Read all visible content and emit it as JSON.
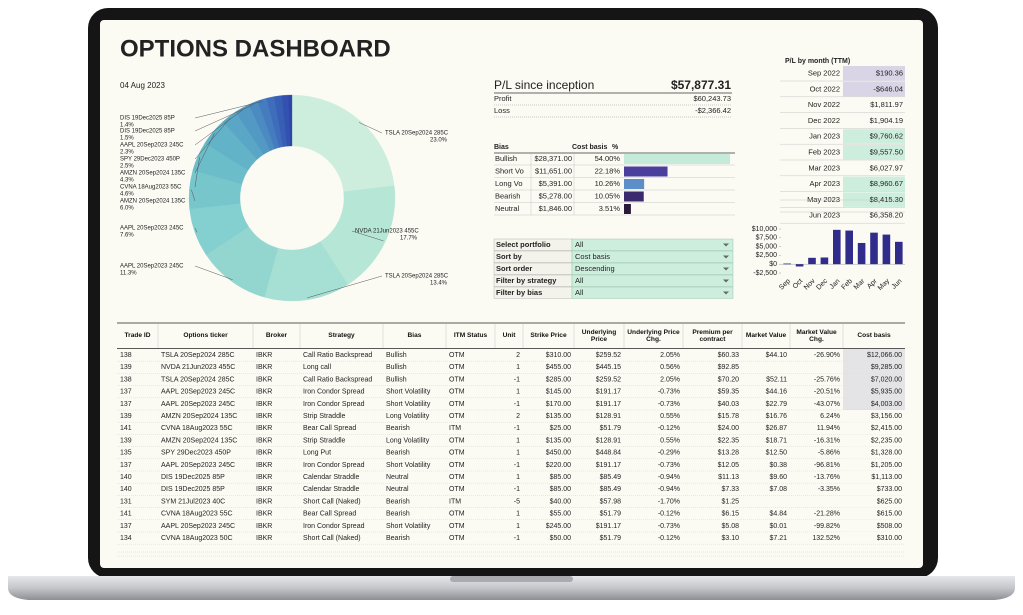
{
  "title": "OPTIONS DASHBOARD",
  "date": "04 Aug 2023",
  "pl_summary": {
    "label": "P/L since inception",
    "value": "$57,877.31",
    "rows": [
      [
        "Profit",
        "$60,243.73"
      ],
      [
        "Loss",
        "-$2,366.42"
      ]
    ]
  },
  "bias_table": {
    "columns": [
      "Bias",
      "Cost basis",
      "%"
    ],
    "rows": [
      [
        "Bullish",
        "$28,371.00"
      ],
      [
        "Short Vo",
        "$11,651.00"
      ],
      [
        "Long Vo",
        "$5,391.00"
      ],
      [
        "Bearish",
        "$5,278.00"
      ],
      [
        "Neutral",
        "$1,846.00"
      ]
    ]
  },
  "filters": [
    [
      "Select portfolio",
      "All"
    ],
    [
      "Sort by",
      "Cost basis"
    ],
    [
      "Sort order",
      "Descending"
    ],
    [
      "Filter by strategy",
      "All"
    ],
    [
      "Filter by bias",
      "All"
    ]
  ],
  "pl_by_month": {
    "title": "P/L by month (TTM)",
    "rows": [
      [
        "Sep 2022",
        "$190.36"
      ],
      [
        "Oct 2022",
        "-$646.04"
      ],
      [
        "Nov 2022",
        "$1,811.97"
      ],
      [
        "Dec 2022",
        "$1,904.19"
      ],
      [
        "Jan 2023",
        "$9,760.62"
      ],
      [
        "Feb 2023",
        "$9,557.50"
      ],
      [
        "Mar 2023",
        "$6,027.97"
      ],
      [
        "Apr 2023",
        "$8,960.67"
      ],
      [
        "May 2023",
        "$8,415.30"
      ],
      [
        "Jun 2023",
        "$6,358.20"
      ]
    ]
  },
  "positions": {
    "columns": [
      "Trade ID",
      "Options ticker",
      "Broker",
      "Strategy",
      "Bias",
      "ITM Status",
      "Unit",
      "Strike Price",
      "Underlying Price",
      "Underlying Price Chg.",
      "Premium per contract",
      "Market Value",
      "Market Value Chg.",
      "Cost basis"
    ],
    "rows": [
      [
        "138",
        "TSLA 20Sep2024 285C",
        "IBKR",
        "Call Ratio Backspread",
        "Bullish",
        "OTM",
        "2",
        "$310.00",
        "$259.52",
        "2.05%",
        "$60.33",
        "$44.10",
        "-26.90%",
        "$12,066.00"
      ],
      [
        "139",
        "NVDA 21Jun2023 455C",
        "IBKR",
        "Long call",
        "Bullish",
        "OTM",
        "1",
        "$455.00",
        "$445.15",
        "0.56%",
        "$92.85",
        null,
        null,
        "$9,285.00"
      ],
      [
        "138",
        "TSLA 20Sep2024 285C",
        "IBKR",
        "Call Ratio Backspread",
        "Bullish",
        "OTM",
        "-1",
        "$285.00",
        "$259.52",
        "2.05%",
        "$70.20",
        "$52.11",
        "-25.76%",
        "$7,020.00"
      ],
      [
        "137",
        "AAPL 20Sep2023 245C",
        "IBKR",
        "Iron Condor Spread",
        "Short Volatility",
        "OTM",
        "1",
        "$145.00",
        "$191.17",
        "-0.73%",
        "$59.35",
        "$44.16",
        "-20.51%",
        "$5,935.00"
      ],
      [
        "137",
        "AAPL 20Sep2023 245C",
        "IBKR",
        "Iron Condor Spread",
        "Short Volatility",
        "OTM",
        "-1",
        "$170.00",
        "$191.17",
        "-0.73%",
        "$40.03",
        "$22.79",
        "-43.07%",
        "$4,003.00"
      ],
      [
        "139",
        "AMZN 20Sep2024 135C",
        "IBKR",
        "Strip Straddle",
        "Long Volatility",
        "OTM",
        "2",
        "$135.00",
        "$128.91",
        "0.55%",
        "$15.78",
        "$16.76",
        "6.24%",
        "$3,156.00"
      ],
      [
        "141",
        "CVNA 18Aug2023 55C",
        "IBKR",
        "Bear Call Spread",
        "Bearish",
        "ITM",
        "-1",
        "$25.00",
        "$51.79",
        "-0.12%",
        "$24.00",
        "$26.87",
        "11.94%",
        "$2,415.00"
      ],
      [
        "139",
        "AMZN 20Sep2024 135C",
        "IBKR",
        "Strip Straddle",
        "Long Volatility",
        "OTM",
        "1",
        "$135.00",
        "$128.91",
        "0.55%",
        "$22.35",
        "$18.71",
        "-16.31%",
        "$2,235.00"
      ],
      [
        "135",
        "SPY 29Dec2023 450P",
        "IBKR",
        "Long Put",
        "Bearish",
        "OTM",
        "1",
        "$450.00",
        "$448.84",
        "-0.29%",
        "$13.28",
        "$12.50",
        "-5.86%",
        "$1,328.00"
      ],
      [
        "137",
        "AAPL 20Sep2023 245C",
        "IBKR",
        "Iron Condor Spread",
        "Short Volatility",
        "OTM",
        "-1",
        "$220.00",
        "$191.17",
        "-0.73%",
        "$12.05",
        "$0.38",
        "-96.81%",
        "$1,205.00"
      ],
      [
        "140",
        "DIS 19Dec2025 85P",
        "IBKR",
        "Calendar Straddle",
        "Neutral",
        "OTM",
        "1",
        "$85.00",
        "$85.49",
        "-0.94%",
        "$11.13",
        "$9.60",
        "-13.76%",
        "$1,113.00"
      ],
      [
        "140",
        "DIS 19Dec2025 85P",
        "IBKR",
        "Calendar Straddle",
        "Neutral",
        "OTM",
        "-1",
        "$85.00",
        "$85.49",
        "-0.94%",
        "$7.33",
        "$7.08",
        "-3.35%",
        "$733.00"
      ],
      [
        "131",
        "SYM 21Jul2023 40C",
        "IBKR",
        "Short Call (Naked)",
        "Bearish",
        "ITM",
        "-5",
        "$40.00",
        "$57.98",
        "-1.70%",
        "$1.25",
        null,
        null,
        "$625.00"
      ],
      [
        "141",
        "CVNA 18Aug2023 55C",
        "IBKR",
        "Bear Call Spread",
        "Bearish",
        "OTM",
        "1",
        "$55.00",
        "$51.79",
        "-0.12%",
        "$6.15",
        "$4.84",
        "-21.28%",
        "$615.00"
      ],
      [
        "137",
        "AAPL 20Sep2023 245C",
        "IBKR",
        "Iron Condor Spread",
        "Short Volatility",
        "OTM",
        "1",
        "$245.00",
        "$191.17",
        "-0.73%",
        "$5.08",
        "$0.01",
        "-99.82%",
        "$508.00"
      ],
      [
        "134",
        "CVNA 18Aug2023 50C",
        "IBKR",
        "Short Call (Naked)",
        "Bearish",
        "OTM",
        "-1",
        "$50.00",
        "$51.79",
        "-0.12%",
        "$3.10",
        "$7.21",
        "132.52%",
        "$310.00"
      ]
    ]
  },
  "chart_data": [
    {
      "type": "donut",
      "categories": [
        "TSLA 20Sep2024 285C",
        "NVDA 21Jun2023 455C",
        "TSLA 20Sep2024 285C",
        "AAPL 20Sep2023 245C",
        "AAPL 20Sep2023 245C",
        "AMZN 20Sep2024 135C",
        "CVNA 18Aug2023 55C",
        "AMZN 20Sep2024 135C",
        "SPY 29Dec2023 450P",
        "AAPL 20Sep2023 245C",
        "DIS 19Dec2025 85P",
        "DIS 19Dec2025 85P",
        null,
        null,
        null,
        null
      ],
      "values": [
        23.0,
        17.7,
        13.4,
        11.3,
        7.6,
        6.0,
        4.6,
        4.3,
        2.5,
        2.3,
        1.5,
        1.4,
        1.2,
        1.2,
        1.0,
        0.6
      ],
      "value_labels": [
        "23.0%",
        "17.7%",
        "13.4%",
        "11.3%",
        "7.6%",
        "6.0%",
        "4.6%",
        "4.3%",
        "2.5%",
        "2.3%",
        "1.5%",
        "1.4%",
        null,
        null,
        null,
        null
      ],
      "colors": [
        "#cdeedd",
        "#b6e6d6",
        "#a6dfd3",
        "#93d6d0",
        "#84cfcf",
        "#76c6cc",
        "#6bbdca",
        "#62b2c8",
        "#5aa6c6",
        "#5299c4",
        "#4b8bc2",
        "#447cbf",
        "#3e6dbb",
        "#385fb6",
        "#3352b0",
        "#2e46a8"
      ]
    },
    {
      "type": "hbar",
      "values": [
        54.0,
        22.18,
        10.26,
        10.05,
        3.51
      ],
      "value_labels": [
        "54.00%",
        "22.18%",
        "10.26%",
        "10.05%",
        "3.51%"
      ],
      "colors": [
        "#c4ead9",
        "#4b3f9e",
        "#5c8fc8",
        "#3c2a6e",
        "#2a1a3a"
      ],
      "xlim": [
        0,
        54
      ]
    },
    {
      "type": "bar",
      "categories": [
        "Sep",
        "Oct",
        "Nov",
        "Dec",
        "Jan",
        "Feb",
        "Mar",
        "Apr",
        "May",
        "Jun"
      ],
      "values": [
        190.36,
        -646.04,
        1811.97,
        1904.19,
        9760.62,
        9557.5,
        6027.97,
        8960.67,
        8415.3,
        6358.2
      ],
      "color": "#2f2c8c",
      "ylim": [
        -2500,
        10000
      ],
      "yticks": [
        {
          "value": -2500,
          "label": "-$2,500"
        },
        {
          "value": 0,
          "label": "$0"
        },
        {
          "value": 2500,
          "label": "$2,500"
        },
        {
          "value": 5000,
          "label": "$5,000"
        },
        {
          "value": 7500,
          "label": "$7,500"
        },
        {
          "value": 10000,
          "label": "$10,000"
        }
      ]
    }
  ]
}
